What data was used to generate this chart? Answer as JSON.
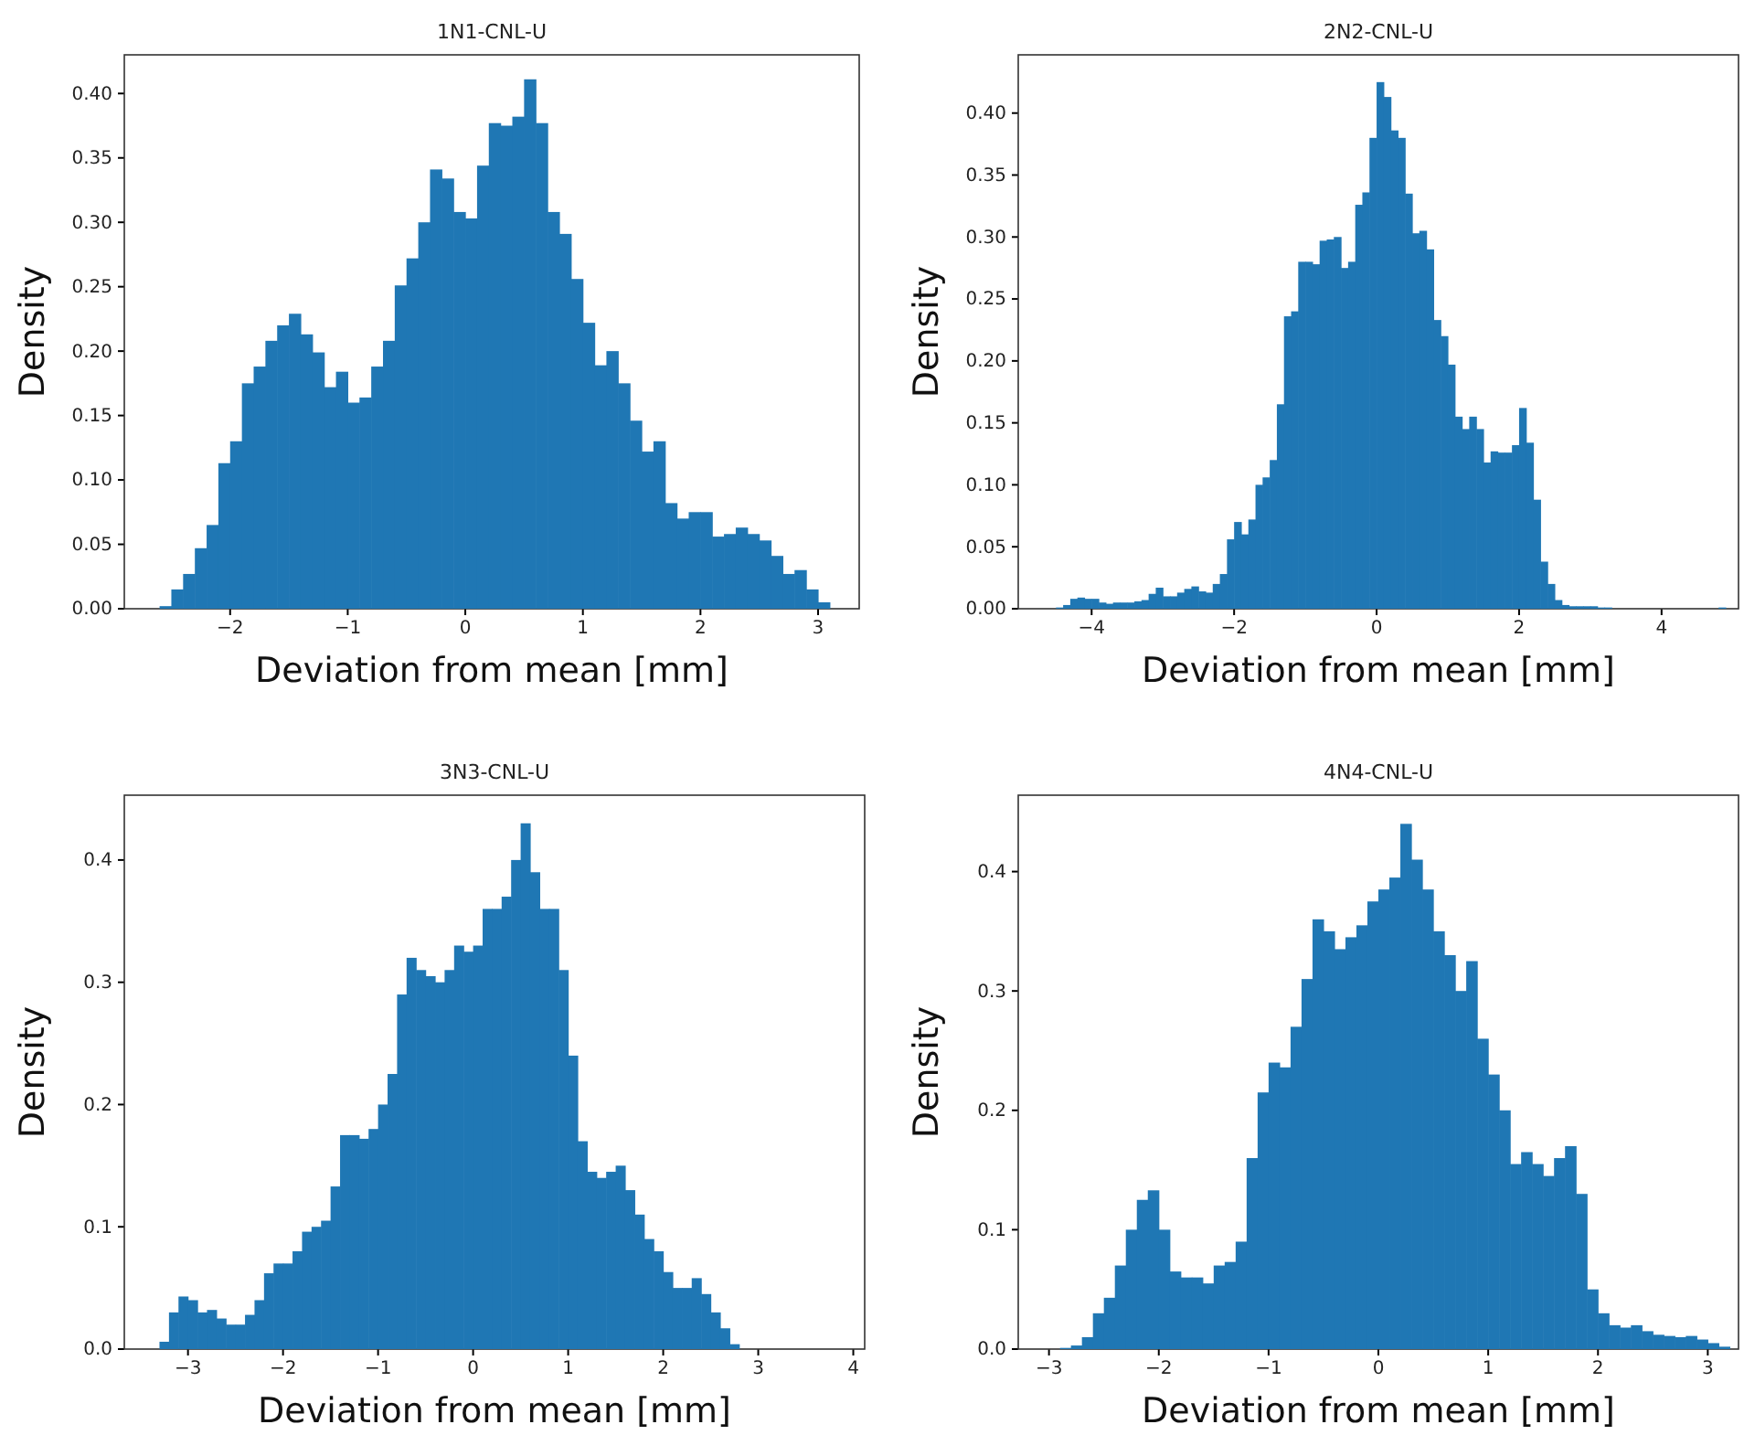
{
  "chart_data": [
    {
      "type": "histogram",
      "title": "1N1-CNL-U",
      "xlabel": "Deviation from mean [mm]",
      "ylabel": "Density",
      "color": "#1f77b4",
      "bins": [
        -2.6,
        -2.5,
        -2.4,
        -2.3,
        -2.2,
        -2.1,
        -2.0,
        -1.9,
        -1.8,
        -1.7,
        -1.6,
        -1.5,
        -1.4,
        -1.3,
        -1.2,
        -1.1,
        -1.0,
        -0.9,
        -0.8,
        -0.7,
        -0.6,
        -0.5,
        -0.4,
        -0.3,
        -0.2,
        -0.1,
        0,
        0.1,
        0.2,
        0.3,
        0.4,
        0.5,
        0.6,
        0.7,
        0.8,
        0.9,
        1.0,
        1.1,
        1.2,
        1.3,
        1.4,
        1.5,
        1.6,
        1.7,
        1.8,
        1.9,
        2.0,
        2.1,
        2.2,
        2.3,
        2.4,
        2.5,
        2.6,
        2.7,
        2.8,
        2.9,
        3.0,
        3.1
      ],
      "values": [
        0.002,
        0.015,
        0.027,
        0.047,
        0.065,
        0.113,
        0.13,
        0.175,
        0.188,
        0.208,
        0.22,
        0.229,
        0.213,
        0.199,
        0.172,
        0.184,
        0.16,
        0.164,
        0.188,
        0.208,
        0.251,
        0.272,
        0.3,
        0.341,
        0.334,
        0.308,
        0.303,
        0.344,
        0.377,
        0.375,
        0.382,
        0.411,
        0.377,
        0.308,
        0.291,
        0.256,
        0.222,
        0.189,
        0.2,
        0.175,
        0.146,
        0.122,
        0.13,
        0.082,
        0.07,
        0.075,
        0.075,
        0.056,
        0.058,
        0.063,
        0.058,
        0.053,
        0.041,
        0.027,
        0.03,
        0.015,
        0.005
      ],
      "xlim": [
        -2.9,
        3.35
      ],
      "xticks": [
        {
          "value": -2,
          "label": "−2"
        },
        {
          "value": -1,
          "label": "−1"
        },
        0,
        1,
        2,
        3
      ],
      "ylim": [
        0,
        0.43
      ],
      "yticks": [
        {
          "value": 0,
          "label": "0.00"
        },
        {
          "value": 0.05,
          "label": "0.05"
        },
        {
          "value": 0.1,
          "label": "0.10"
        },
        {
          "value": 0.15,
          "label": "0.15"
        },
        {
          "value": 0.2,
          "label": "0.20"
        },
        {
          "value": 0.25,
          "label": "0.25"
        },
        {
          "value": 0.3,
          "label": "0.30"
        },
        {
          "value": 0.35,
          "label": "0.35"
        },
        {
          "value": 0.4,
          "label": "0.40"
        }
      ]
    },
    {
      "type": "histogram",
      "title": "2N2-CNL-U",
      "xlabel": "Deviation from mean [mm]",
      "ylabel": "Density",
      "color": "#1f77b4",
      "bins": [
        -4.5,
        -4.4,
        -4.3,
        -4.2,
        -4.1,
        -4.0,
        -3.9,
        -3.8,
        -3.7,
        -3.6,
        -3.5,
        -3.4,
        -3.3,
        -3.2,
        -3.1,
        -3.0,
        -2.9,
        -2.8,
        -2.7,
        -2.6,
        -2.5,
        -2.4,
        -2.3,
        -2.2,
        -2.1,
        -2.0,
        -1.9,
        -1.8,
        -1.7,
        -1.6,
        -1.5,
        -1.4,
        -1.3,
        -1.2,
        -1.1,
        -1.0,
        -0.9,
        -0.8,
        -0.7,
        -0.6,
        -0.5,
        -0.4,
        -0.3,
        -0.2,
        -0.1,
        0,
        0.1,
        0.2,
        0.3,
        0.4,
        0.5,
        0.6,
        0.7,
        0.8,
        0.9,
        1.0,
        1.1,
        1.2,
        1.3,
        1.4,
        1.5,
        1.6,
        1.7,
        1.8,
        1.9,
        2.0,
        2.1,
        2.2,
        2.3,
        2.4,
        2.5,
        2.6,
        2.7,
        2.8,
        2.9,
        3.0,
        3.1,
        3.2,
        3.3,
        3.4,
        3.5,
        3.6,
        3.7,
        3.8,
        3.9,
        4.0,
        4.1,
        4.2,
        4.3,
        4.4,
        4.5,
        4.6,
        4.7,
        4.8,
        4.9
      ],
      "values": [
        0.001,
        0.003,
        0.008,
        0.009,
        0.008,
        0.008,
        0.005,
        0.004,
        0.005,
        0.005,
        0.005,
        0.006,
        0.007,
        0.012,
        0.017,
        0.01,
        0.01,
        0.013,
        0.016,
        0.018,
        0.014,
        0.013,
        0.02,
        0.028,
        0.056,
        0.07,
        0.06,
        0.072,
        0.1,
        0.106,
        0.12,
        0.165,
        0.236,
        0.24,
        0.28,
        0.28,
        0.278,
        0.297,
        0.298,
        0.3,
        0.275,
        0.28,
        0.326,
        0.336,
        0.38,
        0.425,
        0.413,
        0.386,
        0.38,
        0.335,
        0.303,
        0.305,
        0.29,
        0.233,
        0.22,
        0.197,
        0.155,
        0.145,
        0.155,
        0.145,
        0.118,
        0.127,
        0.126,
        0.126,
        0.132,
        0.162,
        0.134,
        0.088,
        0.038,
        0.02,
        0.007,
        0.003,
        0.002,
        0.002,
        0.002,
        0.002,
        0.001,
        0.001,
        0,
        0,
        0,
        0,
        0,
        0,
        0,
        0,
        0,
        0,
        0,
        0,
        0,
        0,
        0,
        0.001
      ],
      "xlim": [
        -5.03,
        5.08
      ],
      "xticks": [
        {
          "value": -4,
          "label": "−4"
        },
        {
          "value": -2,
          "label": "−2"
        },
        0,
        2,
        4
      ],
      "ylim": [
        0,
        0.447
      ],
      "yticks": [
        {
          "value": 0,
          "label": "0.00"
        },
        {
          "value": 0.05,
          "label": "0.05"
        },
        {
          "value": 0.1,
          "label": "0.10"
        },
        {
          "value": 0.15,
          "label": "0.15"
        },
        {
          "value": 0.2,
          "label": "0.20"
        },
        {
          "value": 0.25,
          "label": "0.25"
        },
        {
          "value": 0.3,
          "label": "0.30"
        },
        {
          "value": 0.35,
          "label": "0.35"
        },
        {
          "value": 0.4,
          "label": "0.40"
        }
      ]
    },
    {
      "type": "histogram",
      "title": "3N3-CNL-U",
      "xlabel": "Deviation from mean [mm]",
      "ylabel": "Density",
      "color": "#1f77b4",
      "bins": [
        -3.3,
        -3.2,
        -3.1,
        -3.0,
        -2.9,
        -2.8,
        -2.7,
        -2.6,
        -2.5,
        -2.4,
        -2.3,
        -2.2,
        -2.1,
        -2.0,
        -1.9,
        -1.8,
        -1.7,
        -1.6,
        -1.5,
        -1.4,
        -1.3,
        -1.2,
        -1.1,
        -1.0,
        -0.9,
        -0.8,
        -0.7,
        -0.6,
        -0.5,
        -0.4,
        -0.3,
        -0.2,
        -0.1,
        0,
        0.1,
        0.2,
        0.3,
        0.4,
        0.5,
        0.6,
        0.7,
        0.8,
        0.9,
        1.0,
        1.1,
        1.2,
        1.3,
        1.4,
        1.5,
        1.6,
        1.7,
        1.8,
        1.9,
        2.0,
        2.1,
        2.2,
        2.3,
        2.4,
        2.5,
        2.6,
        2.7,
        2.8
      ],
      "values": [
        0.006,
        0.03,
        0.043,
        0.04,
        0.03,
        0.032,
        0.025,
        0.02,
        0.02,
        0.028,
        0.04,
        0.062,
        0.07,
        0.07,
        0.08,
        0.096,
        0.1,
        0.105,
        0.133,
        0.175,
        0.175,
        0.172,
        0.18,
        0.2,
        0.225,
        0.29,
        0.32,
        0.31,
        0.305,
        0.3,
        0.31,
        0.33,
        0.325,
        0.33,
        0.36,
        0.36,
        0.37,
        0.4,
        0.43,
        0.39,
        0.36,
        0.36,
        0.31,
        0.24,
        0.17,
        0.145,
        0.14,
        0.145,
        0.15,
        0.13,
        0.11,
        0.09,
        0.08,
        0.063,
        0.05,
        0.05,
        0.058,
        0.045,
        0.03,
        0.017,
        0.004
      ],
      "xlim": [
        -3.67,
        4.12
      ],
      "xticks": [
        {
          "value": -3,
          "label": "−3"
        },
        {
          "value": -2,
          "label": "−2"
        },
        {
          "value": -1,
          "label": "−1"
        },
        0,
        1,
        2,
        3,
        4
      ],
      "ylim": [
        0,
        0.453
      ],
      "yticks": [
        {
          "value": 0,
          "label": "0.0"
        },
        0.1,
        0.2,
        0.3,
        0.4
      ]
    },
    {
      "type": "histogram",
      "title": "4N4-CNL-U",
      "xlabel": "Deviation from mean [mm]",
      "ylabel": "Density",
      "color": "#1f77b4",
      "bins": [
        -2.9,
        -2.8,
        -2.7,
        -2.6,
        -2.5,
        -2.4,
        -2.3,
        -2.2,
        -2.1,
        -2.0,
        -1.9,
        -1.8,
        -1.7,
        -1.6,
        -1.5,
        -1.4,
        -1.3,
        -1.2,
        -1.1,
        -1.0,
        -0.9,
        -0.8,
        -0.7,
        -0.6,
        -0.5,
        -0.4,
        -0.3,
        -0.2,
        -0.1,
        0,
        0.1,
        0.2,
        0.3,
        0.4,
        0.5,
        0.6,
        0.7,
        0.8,
        0.9,
        1.0,
        1.1,
        1.2,
        1.3,
        1.4,
        1.5,
        1.6,
        1.7,
        1.8,
        1.9,
        2.0,
        2.1,
        2.2,
        2.3,
        2.4,
        2.5,
        2.6,
        2.7,
        2.8,
        2.9,
        3.0,
        3.1,
        3.2
      ],
      "values": [
        0.001,
        0.003,
        0.01,
        0.03,
        0.043,
        0.07,
        0.1,
        0.125,
        0.133,
        0.1,
        0.065,
        0.06,
        0.06,
        0.055,
        0.07,
        0.073,
        0.09,
        0.16,
        0.215,
        0.24,
        0.236,
        0.27,
        0.31,
        0.36,
        0.35,
        0.335,
        0.345,
        0.355,
        0.375,
        0.385,
        0.395,
        0.44,
        0.41,
        0.385,
        0.35,
        0.33,
        0.3,
        0.325,
        0.26,
        0.23,
        0.2,
        0.155,
        0.165,
        0.155,
        0.145,
        0.16,
        0.17,
        0.13,
        0.05,
        0.03,
        0.02,
        0.018,
        0.02,
        0.015,
        0.012,
        0.011,
        0.01,
        0.011,
        0.008,
        0.005,
        0.002
      ],
      "xlim": [
        -3.28,
        3.28
      ],
      "xticks": [
        {
          "value": -3,
          "label": "−3"
        },
        {
          "value": -2,
          "label": "−2"
        },
        {
          "value": -1,
          "label": "−1"
        },
        0,
        1,
        2,
        3
      ],
      "ylim": [
        0,
        0.464
      ],
      "yticks": [
        {
          "value": 0,
          "label": "0.0"
        },
        0.1,
        0.2,
        0.3,
        0.4
      ]
    }
  ]
}
